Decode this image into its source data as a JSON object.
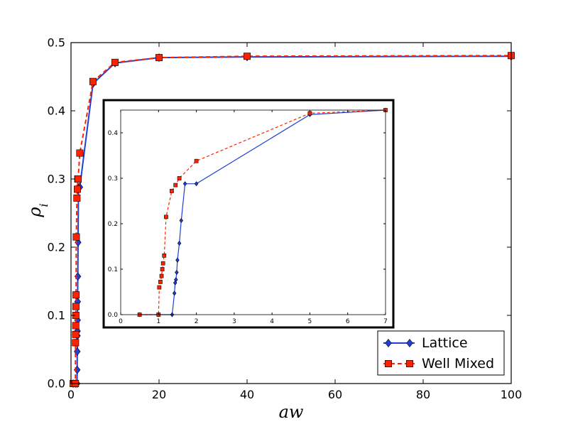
{
  "chart_data": [
    {
      "type": "line",
      "xlabel": "aw",
      "ylabel": "ρ_i",
      "xlim": [
        0,
        100
      ],
      "ylim": [
        0,
        0.5
      ],
      "xticks": [
        0,
        20,
        40,
        60,
        80,
        100
      ],
      "yticks": [
        0.0,
        0.1,
        0.2,
        0.3,
        0.4,
        0.5
      ],
      "xtick_labels": [
        "0",
        "20",
        "40",
        "60",
        "80",
        "100"
      ],
      "ytick_labels": [
        "0.0",
        "0.1",
        "0.2",
        "0.3",
        "0.4",
        "0.5"
      ],
      "grid": false,
      "legend_position": "bottom-right",
      "legend": [
        "Lattice",
        "Well Mixed"
      ],
      "series": [
        {
          "name": "Lattice",
          "color": "#1f3fd6",
          "marker": "diamond",
          "line_style": "solid",
          "x": [
            0.5,
            1.0,
            1.36,
            1.4,
            1.42,
            1.44,
            1.46,
            1.48,
            1.5,
            1.55,
            1.6,
            1.7,
            2.0,
            5.0,
            10.0,
            20.0,
            40.0,
            100.0
          ],
          "y": [
            0.0,
            0.0,
            0.0,
            0.02,
            0.047,
            0.07,
            0.077,
            0.093,
            0.12,
            0.157,
            0.207,
            0.288,
            0.288,
            0.44,
            0.47,
            0.478,
            0.479,
            0.48
          ]
        },
        {
          "name": "Well Mixed",
          "color": "#ff2200",
          "marker": "square",
          "line_style": "dashed",
          "x": [
            0.5,
            1.0,
            1.02,
            1.05,
            1.08,
            1.1,
            1.12,
            1.15,
            1.2,
            1.35,
            1.45,
            1.55,
            1.62,
            2.0,
            5.0,
            10.0,
            20.0,
            40.0,
            100.0
          ],
          "y": [
            0.0,
            0.0,
            0.06,
            0.072,
            0.085,
            0.1,
            0.113,
            0.13,
            0.215,
            0.272,
            0.285,
            0.3,
            0.3,
            0.338,
            0.443,
            0.471,
            0.478,
            0.48,
            0.481
          ]
        }
      ]
    },
    {
      "type": "line",
      "xlabel": "",
      "ylabel": "",
      "xlim": [
        0,
        7
      ],
      "ylim": [
        0,
        0.45
      ],
      "xticks": [
        0,
        1,
        2,
        3,
        4,
        5,
        6,
        7
      ],
      "yticks": [
        0.0,
        0.1,
        0.2,
        0.3,
        0.4
      ],
      "xtick_labels": [
        "0",
        "1",
        "2",
        "3",
        "4",
        "5",
        "6",
        "7"
      ],
      "ytick_labels": [
        "0.0",
        "0.1",
        "0.2",
        "0.3",
        "0.4"
      ],
      "grid": false,
      "series": [
        {
          "name": "Lattice",
          "color": "#1f3fd6",
          "marker": "diamond",
          "line_style": "solid",
          "x": [
            0.5,
            1.0,
            1.36,
            1.42,
            1.44,
            1.46,
            1.48,
            1.5,
            1.55,
            1.6,
            1.7,
            2.0,
            5.0,
            7.0
          ],
          "y": [
            0.0,
            0.0,
            0.0,
            0.047,
            0.07,
            0.077,
            0.093,
            0.12,
            0.157,
            0.207,
            0.288,
            0.288,
            0.44,
            0.45
          ]
        },
        {
          "name": "Well Mixed",
          "color": "#ff2200",
          "marker": "square",
          "line_style": "dashed",
          "x": [
            0.5,
            1.0,
            1.02,
            1.05,
            1.08,
            1.1,
            1.12,
            1.15,
            1.2,
            1.35,
            1.45,
            1.55,
            2.0,
            5.0,
            7.0
          ],
          "y": [
            0.0,
            0.0,
            0.06,
            0.072,
            0.085,
            0.1,
            0.113,
            0.13,
            0.215,
            0.272,
            0.285,
            0.3,
            0.338,
            0.443,
            0.45
          ]
        }
      ]
    }
  ]
}
